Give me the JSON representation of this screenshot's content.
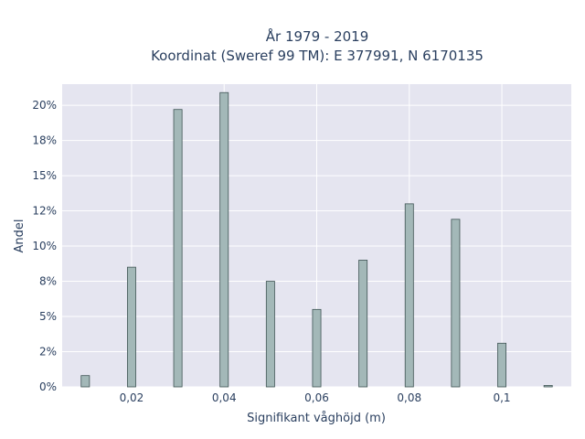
{
  "chart_data": {
    "type": "bar",
    "title_line1": "År 1979 - 2019",
    "title_line2": "Koordinat (Sweref 99 TM): E 377991, N 6170135",
    "xlabel": "Signifikant våghöjd (m)",
    "ylabel": "Andel",
    "xlim": [
      0.005,
      0.115
    ],
    "ylim": [
      0,
      21.5
    ],
    "grid": true,
    "x_ticks": [
      0.02,
      0.04,
      0.06,
      0.08,
      0.1
    ],
    "x_tick_labels": [
      "0,02",
      "0,04",
      "0,06",
      "0,08",
      "0,1"
    ],
    "y_ticks": [
      0,
      2.5,
      5,
      7.5,
      10,
      12.5,
      15,
      17.5,
      20
    ],
    "y_tick_labels": [
      "0%",
      "2%",
      "5%",
      "8%",
      "10%",
      "12%",
      "15%",
      "18%",
      "20%"
    ],
    "bar_width": 0.0018,
    "x": [
      0.01,
      0.02,
      0.03,
      0.04,
      0.05,
      0.06,
      0.07,
      0.08,
      0.09,
      0.1,
      0.11
    ],
    "values": [
      0.8,
      8.5,
      19.7,
      20.9,
      7.5,
      5.5,
      9.0,
      13.0,
      11.9,
      3.1,
      0.1
    ],
    "bar_color": "#a3b8b8",
    "bar_edge_color": "#3f5454",
    "plot_bg_color": "#e5e5f0",
    "grid_color": "#ffffff"
  }
}
